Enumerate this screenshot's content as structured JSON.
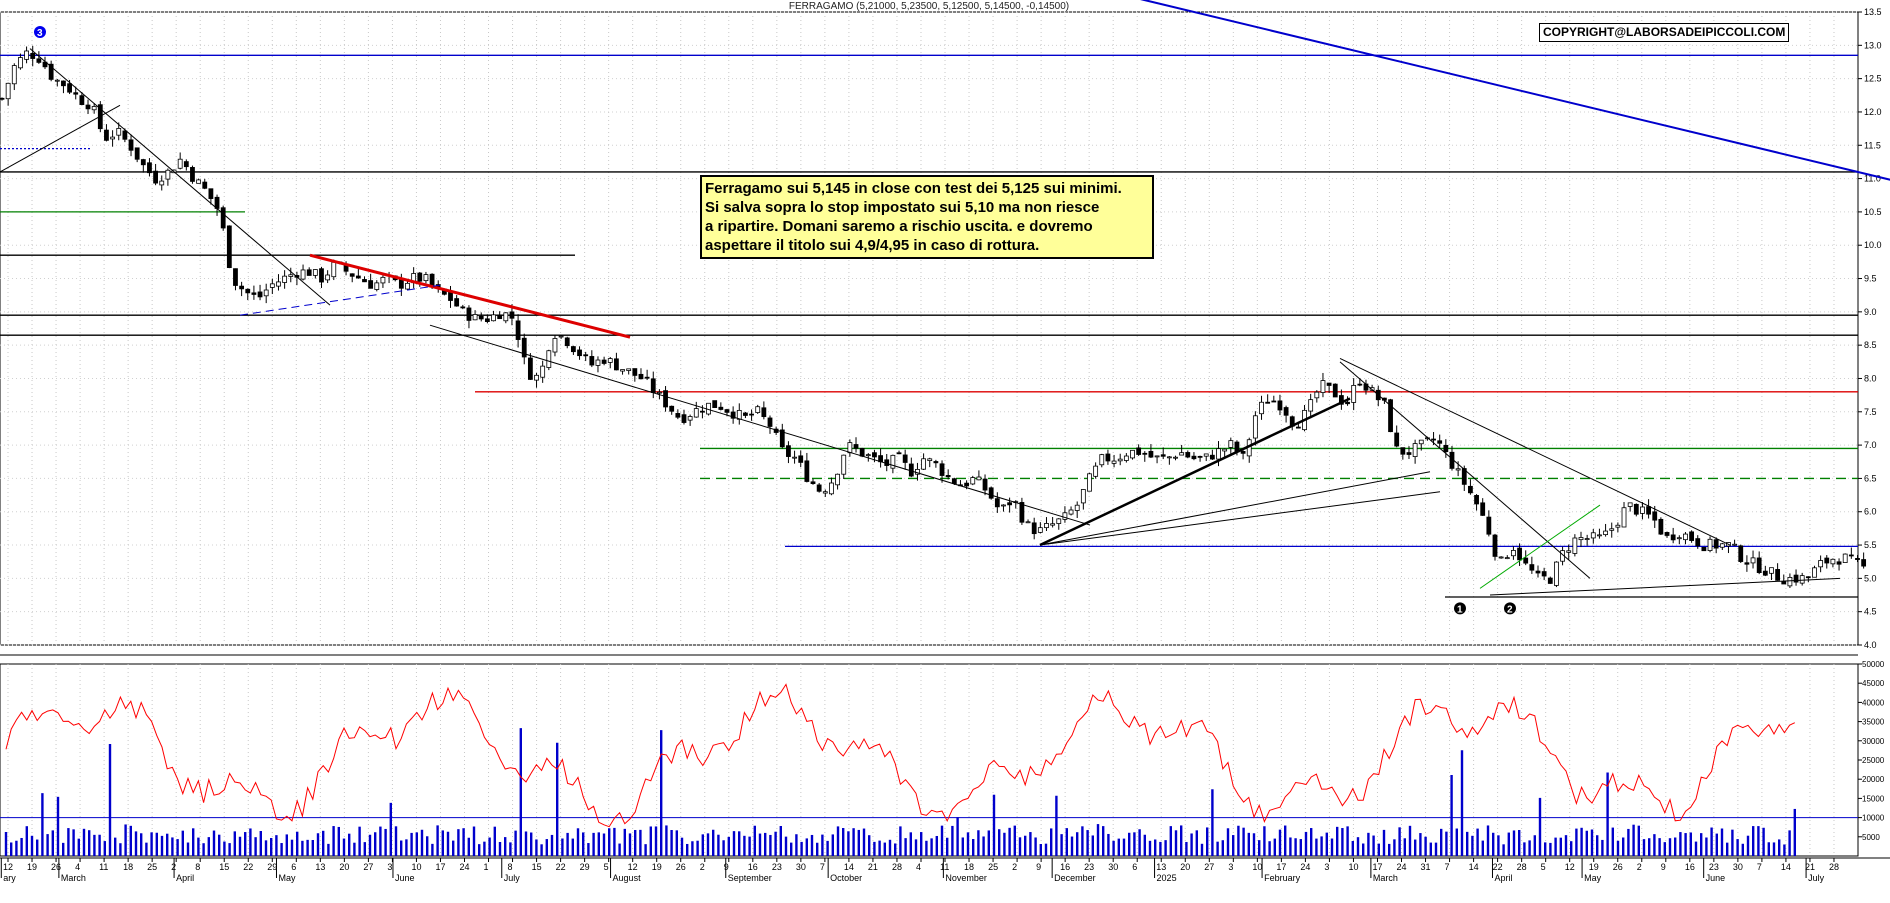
{
  "chart_data": [
    {
      "type": "candlestick",
      "title": "FERRAGAMO (5,21000, 5,23500, 5,12500, 5,14500, -0,14500)",
      "copyright": "COPYRIGHT@LABORSADEIPICCOLI.COM",
      "annotation": "Ferragamo sui 5,145 in close con test dei 5,125 sui minimi.\nSi salva sopra lo stop impostato sui 5,10 ma non riesce\na ripartire. Domani saremo a rischio uscita. e dovremo\naspettare il titolo sui 4,9/4,95 in caso di rottura.",
      "ylim": [
        4.0,
        13.5
      ],
      "yticks": [
        "4.0",
        "4.5",
        "5.0",
        "5.5",
        "6.0",
        "6.5",
        "7.0",
        "7.5",
        "8.0",
        "8.5",
        "9.0",
        "9.5",
        "10.0",
        "10.5",
        "11.0",
        "11.5",
        "12.0",
        "12.5",
        "13.0",
        "13.5"
      ],
      "grid": true,
      "months": [
        {
          "label": "ary",
          "day": 1
        },
        {
          "label": "March",
          "day": 46
        },
        {
          "label": "April",
          "day": 136
        },
        {
          "label": "May",
          "day": 216
        },
        {
          "label": "June",
          "day": 307
        },
        {
          "label": "July",
          "day": 392
        },
        {
          "label": "August",
          "day": 477
        },
        {
          "label": "September",
          "day": 567
        },
        {
          "label": "October",
          "day": 647
        },
        {
          "label": "November",
          "day": 737
        },
        {
          "label": "December",
          "day": 822
        },
        {
          "label": "2025",
          "day": 902
        },
        {
          "label": "February",
          "day": 986
        },
        {
          "label": "March",
          "day": 1071
        },
        {
          "label": "April",
          "day": 1166
        },
        {
          "label": "May",
          "day": 1236
        },
        {
          "label": "June",
          "day": 1331
        },
        {
          "label": "July",
          "day": 1411
        }
      ],
      "days": [
        "12",
        "19",
        "26",
        "4",
        "11",
        "18",
        "25",
        "2",
        "8",
        "15",
        "22",
        "29",
        "6",
        "13",
        "20",
        "27",
        "3",
        "10",
        "17",
        "24",
        "1",
        "8",
        "15",
        "22",
        "29",
        "5",
        "12",
        "19",
        "26",
        "2",
        "9",
        "16",
        "23",
        "30",
        "7",
        "14",
        "21",
        "28",
        "4",
        "11",
        "18",
        "25",
        "2",
        "9",
        "16",
        "23",
        "30",
        "6",
        "13",
        "20",
        "27",
        "3",
        "10",
        "17",
        "24",
        "3",
        "10",
        "17",
        "24",
        "31",
        "7",
        "14",
        "22",
        "28",
        "5",
        "12",
        "19",
        "26",
        "2",
        "9",
        "16",
        "23",
        "30",
        "7",
        "14",
        "21",
        "28"
      ],
      "close_path": [
        [
          0,
          12.2
        ],
        [
          10,
          12.7
        ],
        [
          20,
          12.9
        ],
        [
          30,
          12.8
        ],
        [
          40,
          12.5
        ],
        [
          50,
          12.4
        ],
        [
          60,
          12.2
        ],
        [
          70,
          12.1
        ],
        [
          80,
          11.6
        ],
        [
          90,
          11.7
        ],
        [
          100,
          11.5
        ],
        [
          110,
          11.2
        ],
        [
          120,
          11.0
        ],
        [
          130,
          11.1
        ],
        [
          140,
          11.3
        ],
        [
          150,
          11.0
        ],
        [
          160,
          10.8
        ],
        [
          170,
          10.5
        ],
        [
          175,
          10.0
        ],
        [
          180,
          9.5
        ],
        [
          190,
          9.3
        ],
        [
          200,
          9.2
        ],
        [
          210,
          9.4
        ],
        [
          220,
          9.5
        ],
        [
          230,
          9.6
        ],
        [
          240,
          9.6
        ],
        [
          250,
          9.5
        ],
        [
          260,
          9.7
        ],
        [
          270,
          9.6
        ],
        [
          280,
          9.5
        ],
        [
          290,
          9.4
        ],
        [
          300,
          9.5
        ],
        [
          310,
          9.4
        ],
        [
          320,
          9.5
        ],
        [
          330,
          9.5
        ],
        [
          340,
          9.3
        ],
        [
          350,
          9.2
        ],
        [
          360,
          9.0
        ],
        [
          370,
          8.9
        ],
        [
          380,
          8.9
        ],
        [
          390,
          9.0
        ],
        [
          400,
          8.9
        ],
        [
          410,
          8.1
        ],
        [
          420,
          8.0
        ],
        [
          430,
          8.7
        ],
        [
          440,
          8.6
        ],
        [
          450,
          8.4
        ],
        [
          460,
          8.2
        ],
        [
          470,
          8.3
        ],
        [
          480,
          8.2
        ],
        [
          490,
          8.1
        ],
        [
          500,
          8.0
        ],
        [
          510,
          7.8
        ],
        [
          520,
          7.6
        ],
        [
          530,
          7.4
        ],
        [
          540,
          7.5
        ],
        [
          550,
          7.6
        ],
        [
          560,
          7.6
        ],
        [
          570,
          7.5
        ],
        [
          580,
          7.4
        ],
        [
          590,
          7.5
        ],
        [
          600,
          7.3
        ],
        [
          610,
          6.9
        ],
        [
          620,
          6.8
        ],
        [
          630,
          6.5
        ],
        [
          640,
          6.3
        ],
        [
          650,
          6.5
        ],
        [
          660,
          7.0
        ],
        [
          670,
          6.9
        ],
        [
          680,
          6.8
        ],
        [
          690,
          6.7
        ],
        [
          700,
          6.8
        ],
        [
          710,
          6.6
        ],
        [
          720,
          6.8
        ],
        [
          730,
          6.7
        ],
        [
          740,
          6.5
        ],
        [
          750,
          6.4
        ],
        [
          760,
          6.5
        ],
        [
          770,
          6.3
        ],
        [
          780,
          6.0
        ],
        [
          790,
          6.2
        ],
        [
          800,
          5.8
        ],
        [
          810,
          5.7
        ],
        [
          820,
          5.8
        ],
        [
          830,
          5.9
        ],
        [
          840,
          6.1
        ],
        [
          850,
          6.5
        ],
        [
          860,
          6.8
        ],
        [
          870,
          6.8
        ],
        [
          880,
          6.9
        ],
        [
          890,
          6.9
        ],
        [
          900,
          6.8
        ],
        [
          910,
          6.8
        ],
        [
          920,
          6.9
        ],
        [
          930,
          6.8
        ],
        [
          940,
          6.8
        ],
        [
          950,
          6.9
        ],
        [
          960,
          7.0
        ],
        [
          970,
          6.8
        ],
        [
          980,
          7.5
        ],
        [
          990,
          7.7
        ],
        [
          1000,
          7.6
        ],
        [
          1010,
          7.3
        ],
        [
          1020,
          7.5
        ],
        [
          1030,
          7.9
        ],
        [
          1040,
          7.8
        ],
        [
          1050,
          7.6
        ],
        [
          1060,
          8.0
        ],
        [
          1070,
          7.8
        ],
        [
          1080,
          7.6
        ],
        [
          1090,
          6.9
        ],
        [
          1100,
          6.9
        ],
        [
          1110,
          7.0
        ],
        [
          1120,
          7.1
        ],
        [
          1130,
          6.8
        ],
        [
          1140,
          6.5
        ],
        [
          1150,
          6.2
        ],
        [
          1160,
          5.8
        ],
        [
          1170,
          5.2
        ],
        [
          1180,
          5.5
        ],
        [
          1190,
          5.2
        ],
        [
          1200,
          5.0
        ],
        [
          1210,
          5.0
        ],
        [
          1220,
          5.4
        ],
        [
          1230,
          5.6
        ],
        [
          1240,
          5.6
        ],
        [
          1250,
          5.6
        ],
        [
          1260,
          5.8
        ],
        [
          1270,
          6.1
        ],
        [
          1280,
          6.0
        ],
        [
          1290,
          5.9
        ],
        [
          1300,
          5.6
        ],
        [
          1310,
          5.7
        ],
        [
          1320,
          5.6
        ],
        [
          1330,
          5.5
        ],
        [
          1340,
          5.5
        ],
        [
          1350,
          5.5
        ],
        [
          1360,
          5.3
        ],
        [
          1370,
          5.2
        ],
        [
          1380,
          5.1
        ],
        [
          1390,
          5.0
        ],
        [
          1400,
          5.0
        ],
        [
          1410,
          5.0
        ],
        [
          1420,
          5.2
        ],
        [
          1430,
          5.3
        ],
        [
          1440,
          5.3
        ],
        [
          1450,
          5.2
        ],
        [
          1455,
          5.15
        ]
      ],
      "horizontal_levels": [
        {
          "y": 12.85,
          "color": "#0000cc"
        },
        {
          "y": 11.1,
          "color": "#000000"
        },
        {
          "y": 10.5,
          "color": "#008000",
          "x0": 0,
          "x1": 245
        },
        {
          "y": 9.85,
          "color": "#000000",
          "x0": 0,
          "x1": 575
        },
        {
          "y": 8.95,
          "color": "#000000"
        },
        {
          "y": 8.65,
          "color": "#000000"
        },
        {
          "y": 7.8,
          "color": "#dd0000",
          "x0": 475
        },
        {
          "y": 6.95,
          "color": "#008000",
          "x0": 700
        },
        {
          "y": 6.5,
          "color": "#008000",
          "x0": 700,
          "dashed": true
        },
        {
          "y": 5.48,
          "color": "#0000cc",
          "x0": 785
        },
        {
          "y": 4.72,
          "color": "#000000",
          "x0": 1445
        },
        {
          "y": 11.45,
          "color": "#0000cc",
          "x0": 0,
          "x1": 90,
          "dotted": true
        }
      ],
      "trendlines": [
        {
          "p": [
            [
              0,
              11.1
            ],
            [
              120,
              12.1
            ]
          ],
          "color": "#000000",
          "w": 1
        },
        {
          "p": [
            [
              30,
              12.95
            ],
            [
              330,
              9.1
            ]
          ],
          "color": "#000000",
          "w": 1
        },
        {
          "p": [
            [
              310,
              9.85
            ],
            [
              630,
              8.62
            ]
          ],
          "color": "#dd0000",
          "w": 3
        },
        {
          "p": [
            [
              240,
              8.95
            ],
            [
              440,
              9.4
            ]
          ],
          "color": "#0000cc",
          "w": 1,
          "dashed": true
        },
        {
          "p": [
            [
              430,
              8.8
            ],
            [
              1090,
              5.8
            ]
          ],
          "color": "#000000",
          "w": 1
        },
        {
          "p": [
            [
              1040,
              5.5
            ],
            [
              1350,
              7.7
            ]
          ],
          "color": "#000000",
          "w": 2.5
        },
        {
          "p": [
            [
              1040,
              5.5
            ],
            [
              1430,
              6.6
            ]
          ],
          "color": "#000000",
          "w": 1
        },
        {
          "p": [
            [
              1040,
              5.5
            ],
            [
              1440,
              6.3
            ]
          ],
          "color": "#000000",
          "w": 1
        },
        {
          "p": [
            [
              1340,
              8.3
            ],
            [
              1730,
              5.5
            ]
          ],
          "color": "#000000",
          "w": 1
        },
        {
          "p": [
            [
              1340,
              8.25
            ],
            [
              1590,
              5.0
            ]
          ],
          "color": "#000000",
          "w": 1
        },
        {
          "p": [
            [
              1490,
              4.75
            ],
            [
              1840,
              5.0
            ]
          ],
          "color": "#000000",
          "w": 1
        },
        {
          "p": [
            [
              1480,
              4.85
            ],
            [
              1600,
              6.1
            ]
          ],
          "color": "#00aa00",
          "w": 1
        },
        {
          "p": [
            [
              420,
              16.3
            ],
            [
              2300,
              9.5
            ]
          ],
          "color": "#0000cc",
          "w": 2
        }
      ],
      "markers": [
        {
          "label": "3",
          "x": 40,
          "y": 13.2,
          "circle_fill": "#0000ee"
        },
        {
          "label": "1",
          "x": 1460,
          "y": 4.55
        },
        {
          "label": "2",
          "x": 1510,
          "y": 4.55
        }
      ]
    },
    {
      "type": "bar",
      "title": "",
      "ylim": [
        0,
        50000
      ],
      "yticks": [
        "5000",
        "10000",
        "15000",
        "20000",
        "25000",
        "30000",
        "35000",
        "40000",
        "45000",
        "50000"
      ],
      "bar_color": "#0000cc",
      "line_color": "#ff0000",
      "reference_level": 10000
    }
  ]
}
